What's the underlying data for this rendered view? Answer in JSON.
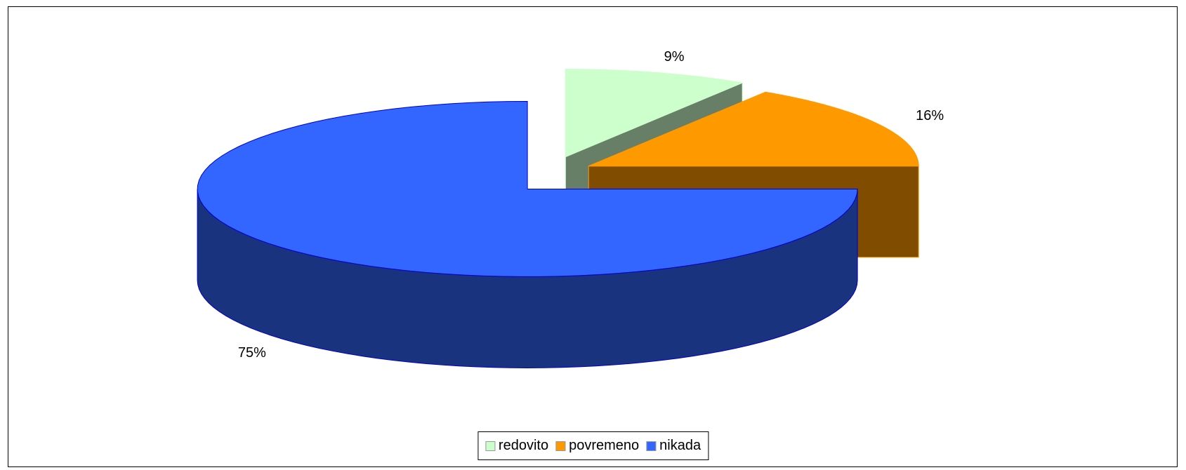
{
  "chart_data": {
    "type": "pie3d",
    "categories": [
      "redovito",
      "povremeno",
      "nikada"
    ],
    "values": [
      9,
      16,
      75
    ],
    "value_labels": [
      "9%",
      "16%",
      "75%"
    ],
    "colors": [
      "#ccffcc",
      "#ff9900",
      "#3366ff"
    ],
    "legend": "bottom"
  }
}
